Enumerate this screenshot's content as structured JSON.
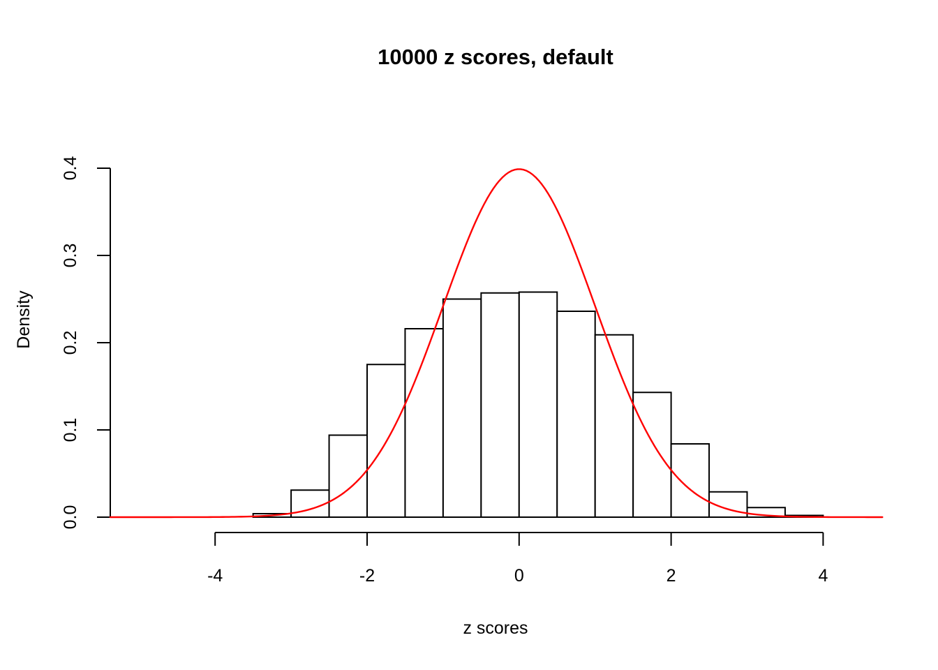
{
  "colors": {
    "background": "#ffffff",
    "axis": "#000000",
    "bar_fill": "#ffffff",
    "bar_stroke": "#000000",
    "curve": "#ff0000"
  },
  "chart_data": {
    "type": "histogram",
    "title": "10000 z scores, default",
    "xlabel": "z scores",
    "ylabel": "Density",
    "n_label": "10000",
    "grid": false,
    "legend": null,
    "xlim": [
      -4,
      4
    ],
    "ylim": [
      0,
      0.4
    ],
    "bin_width": 0.5,
    "bins": [
      {
        "from": -3.5,
        "to": -3.0,
        "density": 0.004
      },
      {
        "from": -3.0,
        "to": -2.5,
        "density": 0.031
      },
      {
        "from": -2.5,
        "to": -2.0,
        "density": 0.094
      },
      {
        "from": -2.0,
        "to": -1.5,
        "density": 0.175
      },
      {
        "from": -1.5,
        "to": -1.0,
        "density": 0.216
      },
      {
        "from": -1.0,
        "to": -0.5,
        "density": 0.25
      },
      {
        "from": -0.5,
        "to": 0.0,
        "density": 0.257
      },
      {
        "from": 0.0,
        "to": 0.5,
        "density": 0.258
      },
      {
        "from": 0.5,
        "to": 1.0,
        "density": 0.236
      },
      {
        "from": 1.0,
        "to": 1.5,
        "density": 0.209
      },
      {
        "from": 1.5,
        "to": 2.0,
        "density": 0.143
      },
      {
        "from": 2.0,
        "to": 2.5,
        "density": 0.084
      },
      {
        "from": 2.5,
        "to": 3.0,
        "density": 0.029
      },
      {
        "from": 3.0,
        "to": 3.5,
        "density": 0.011
      },
      {
        "from": 3.5,
        "to": 4.0,
        "density": 0.002
      }
    ],
    "x_ticks": [
      {
        "label": "-4",
        "value": -4
      },
      {
        "label": "-2",
        "value": -2
      },
      {
        "label": "0",
        "value": 0
      },
      {
        "label": "2",
        "value": 2
      },
      {
        "label": "4",
        "value": 4
      }
    ],
    "y_ticks": [
      {
        "label": "0.0",
        "value": 0.0
      },
      {
        "label": "0.1",
        "value": 0.1
      },
      {
        "label": "0.2",
        "value": 0.2
      },
      {
        "label": "0.3",
        "value": 0.3
      },
      {
        "label": "0.4",
        "value": 0.4
      }
    ],
    "curve": {
      "name": "standard-normal-density",
      "mean": 0,
      "sd": 1,
      "x_range": [
        -5.38,
        4.79
      ],
      "peak_density": 0.3989,
      "color": "#ff0000"
    }
  }
}
